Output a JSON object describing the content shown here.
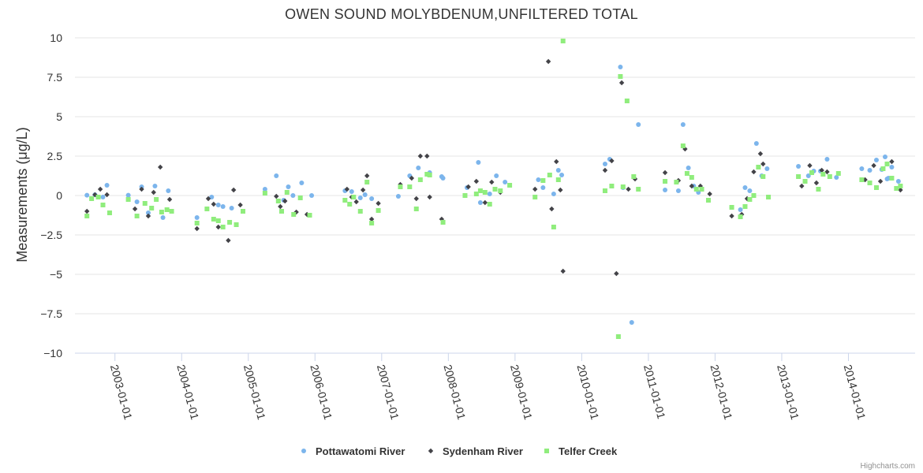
{
  "chart_data": {
    "type": "scatter",
    "title": "OWEN SOUND MOLYBDENUM,UNFILTERED TOTAL",
    "ylabel": "Measurements (μg/L)",
    "xlabel": "",
    "ylim": [
      -10,
      10
    ],
    "yticks": [
      10,
      7.5,
      5,
      2.5,
      0,
      -2.5,
      -5,
      -7.5,
      -10
    ],
    "ytick_labels": [
      "10",
      "7.5",
      "5",
      "2.5",
      "0",
      "−2.5",
      "−5",
      "−7.5",
      "−10"
    ],
    "xlim": [
      2002.4,
      2015.0
    ],
    "xticks": [
      2003,
      2004,
      2005,
      2006,
      2007,
      2008,
      2009,
      2010,
      2011,
      2012,
      2013,
      2014
    ],
    "xtick_labels": [
      "2003-01-01",
      "2004-01-01",
      "2005-01-01",
      "2006-01-01",
      "2007-01-01",
      "2008-01-01",
      "2009-01-01",
      "2010-01-01",
      "2011-01-01",
      "2012-01-01",
      "2013-01-01",
      "2014-01-01"
    ],
    "series": [
      {
        "name": "Pottawatomi River",
        "color": "#7cb5ec",
        "marker": "circle",
        "x": [
          2002.58,
          2002.7,
          2002.82,
          2002.88,
          2003.2,
          2003.33,
          2003.4,
          2003.5,
          2003.6,
          2003.72,
          2003.8,
          2004.23,
          2004.45,
          2004.55,
          2004.62,
          2004.75,
          2005.25,
          2005.42,
          2005.53,
          2005.6,
          2005.67,
          2005.8,
          2005.95,
          2006.45,
          2006.55,
          2006.68,
          2006.75,
          2006.85,
          2007.25,
          2007.42,
          2007.55,
          2007.72,
          2007.92,
          2008.28,
          2008.45,
          2008.48,
          2008.62,
          2008.72,
          2008.85,
          2009.35,
          2009.42,
          2009.58,
          2009.65,
          2009.7,
          2010.35,
          2010.42,
          2010.58,
          2010.75,
          2010.85,
          2011.25,
          2011.45,
          2011.52,
          2011.6,
          2011.68,
          2011.75,
          2012.25,
          2012.38,
          2012.45,
          2012.52,
          2012.62,
          2012.7,
          2012.78,
          2013.25,
          2013.4,
          2013.48,
          2013.58,
          2013.68,
          2013.82,
          2014.2,
          2014.32,
          2014.42,
          2014.5,
          2014.55,
          2014.6,
          2014.65,
          2014.75
        ],
        "y": [
          0.02,
          0.05,
          -0.1,
          0.65,
          0.02,
          -0.4,
          0.55,
          -1.1,
          0.6,
          -1.4,
          0.3,
          -1.4,
          -0.1,
          -0.6,
          -0.7,
          -0.8,
          0.4,
          1.25,
          -0.3,
          0.55,
          0.0,
          0.8,
          0.0,
          0.3,
          0.25,
          -0.15,
          0.05,
          -0.2,
          -0.05,
          1.25,
          1.75,
          1.45,
          1.1,
          0.5,
          2.1,
          -0.45,
          0.1,
          1.25,
          0.85,
          1.0,
          0.5,
          0.1,
          1.6,
          1.3,
          2.0,
          2.3,
          8.15,
          -8.05,
          4.5,
          0.35,
          0.3,
          4.5,
          1.75,
          0.6,
          0.2,
          -0.75,
          -0.9,
          0.5,
          0.3,
          3.3,
          1.25,
          1.7,
          1.85,
          1.25,
          1.55,
          1.55,
          2.3,
          1.15,
          1.7,
          1.6,
          2.25,
          1.65,
          2.45,
          1.1,
          1.8,
          0.9
        ],
        "x_extra": [
          2010.62,
          2007.9,
          2014.58
        ],
        "y_extra": [
          0.5,
          1.2,
          1.05
        ]
      },
      {
        "name": "Sydenham River",
        "color": "#434348",
        "marker": "diamond",
        "x": [
          2002.58,
          2002.7,
          2002.78,
          2002.88,
          2003.3,
          2003.4,
          2003.5,
          2003.58,
          2003.68,
          2003.82,
          2004.23,
          2004.4,
          2004.48,
          2004.55,
          2004.7,
          2004.78,
          2004.88,
          2005.42,
          2005.48,
          2005.55,
          2005.72,
          2005.88,
          2006.48,
          2006.55,
          2006.62,
          2006.72,
          2006.78,
          2006.85,
          2006.95,
          2007.28,
          2007.45,
          2007.52,
          2007.58,
          2007.68,
          2007.72,
          2007.9,
          2008.3,
          2008.42,
          2008.55,
          2008.65,
          2008.78,
          2009.3,
          2009.5,
          2009.55,
          2009.62,
          2009.68,
          2009.72,
          2010.35,
          2010.45,
          2010.52,
          2010.6,
          2010.7,
          2010.8,
          2011.25,
          2011.45,
          2011.55,
          2011.65,
          2011.78,
          2011.92,
          2012.25,
          2012.4,
          2012.48,
          2012.58,
          2012.68,
          2012.72,
          2013.3,
          2013.42,
          2013.52,
          2013.6,
          2013.68,
          2014.25,
          2014.38,
          2014.48,
          2014.58,
          2014.65,
          2014.78
        ],
        "y": [
          -1.0,
          0.05,
          0.4,
          0.05,
          -0.85,
          0.4,
          -1.3,
          0.2,
          1.8,
          -0.25,
          -2.1,
          -0.2,
          -0.55,
          -2.0,
          -2.85,
          0.35,
          -0.6,
          -0.05,
          -0.7,
          -0.35,
          -1.05,
          -1.2,
          0.4,
          -0.1,
          -0.4,
          0.35,
          1.25,
          -1.5,
          -0.5,
          0.7,
          1.1,
          -0.2,
          2.5,
          2.5,
          -0.1,
          -1.5,
          0.55,
          0.9,
          -0.45,
          0.85,
          0.2,
          0.4,
          8.5,
          -0.85,
          2.15,
          0.35,
          -4.8,
          1.6,
          2.2,
          -4.95,
          7.15,
          0.4,
          1.05,
          1.45,
          0.95,
          2.95,
          0.6,
          0.6,
          0.1,
          -1.3,
          -1.2,
          -0.2,
          1.5,
          2.65,
          2.0,
          0.6,
          1.9,
          0.8,
          1.6,
          1.5,
          1.0,
          1.9,
          0.9,
          2.0,
          2.15,
          0.35
        ],
        "x_extra": [],
        "y_extra": []
      },
      {
        "name": "Telfer Creek",
        "color": "#90ed7d",
        "marker": "square",
        "x": [
          2002.58,
          2002.65,
          2002.75,
          2002.82,
          2002.92,
          2003.2,
          2003.33,
          2003.45,
          2003.55,
          2003.62,
          2003.7,
          2003.78,
          2003.85,
          2004.23,
          2004.38,
          2004.48,
          2004.55,
          2004.62,
          2004.72,
          2004.82,
          2004.92,
          2005.25,
          2005.45,
          2005.5,
          2005.58,
          2005.68,
          2005.78,
          2005.92,
          2006.45,
          2006.52,
          2006.58,
          2006.68,
          2006.78,
          2006.85,
          2006.95,
          2007.28,
          2007.42,
          2007.52,
          2007.58,
          2007.68,
          2007.72,
          2007.92,
          2008.25,
          2008.42,
          2008.48,
          2008.55,
          2008.62,
          2008.7,
          2008.78,
          2008.92,
          2009.3,
          2009.42,
          2009.52,
          2009.58,
          2009.65,
          2009.72,
          2010.35,
          2010.45,
          2010.55,
          2010.58,
          2010.62,
          2010.68,
          2010.78,
          2010.85,
          2011.25,
          2011.42,
          2011.52,
          2011.58,
          2011.65,
          2011.72,
          2011.8,
          2011.9,
          2012.25,
          2012.38,
          2012.45,
          2012.52,
          2012.58,
          2012.65,
          2012.72,
          2012.8,
          2013.25,
          2013.35,
          2013.45,
          2013.55,
          2013.62,
          2013.72,
          2013.85,
          2014.2,
          2014.32,
          2014.42,
          2014.52,
          2014.58,
          2014.65,
          2014.72,
          2014.78
        ],
        "y": [
          -1.3,
          -0.2,
          -0.1,
          -0.6,
          -1.1,
          -0.25,
          -1.3,
          -0.5,
          -0.8,
          -0.25,
          -1.05,
          -0.9,
          -1.0,
          -1.75,
          -0.85,
          -1.5,
          -1.6,
          -2.0,
          -1.7,
          -1.85,
          -1.0,
          0.15,
          -0.35,
          -1.0,
          0.2,
          -1.2,
          -0.15,
          -1.25,
          -0.3,
          -0.55,
          -0.1,
          -1.0,
          0.85,
          -1.75,
          -0.95,
          0.55,
          0.55,
          -0.85,
          1.0,
          1.35,
          1.3,
          -1.7,
          0.0,
          0.1,
          0.3,
          0.2,
          -0.55,
          0.4,
          0.3,
          0.65,
          -0.1,
          0.95,
          1.3,
          -2.0,
          1.0,
          9.8,
          0.3,
          0.6,
          -8.95,
          7.55,
          0.55,
          6.0,
          1.2,
          0.4,
          0.9,
          0.85,
          3.15,
          1.4,
          1.15,
          0.4,
          0.4,
          -0.3,
          -0.75,
          -1.35,
          -0.7,
          -0.25,
          0.0,
          1.8,
          1.2,
          -0.1,
          1.2,
          0.9,
          1.45,
          0.4,
          1.35,
          1.2,
          1.4,
          1.0,
          0.8,
          0.5,
          1.7,
          2.0,
          1.1,
          0.45,
          0.6
        ],
        "x_extra": [],
        "y_extra": []
      }
    ],
    "legend_position": "bottom-center",
    "grid": "horizontal"
  },
  "credits": "Highcharts.com"
}
